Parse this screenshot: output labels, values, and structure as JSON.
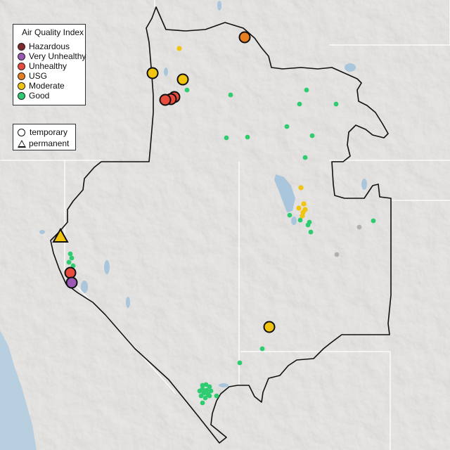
{
  "legend": {
    "title": "Air Quality Index",
    "categories": [
      {
        "label": "Hazardous",
        "color": "#7e2a2a"
      },
      {
        "label": "Very Unhealthy",
        "color": "#9b59b6"
      },
      {
        "label": "Unhealthy",
        "color": "#e74c3c"
      },
      {
        "label": "USG",
        "color": "#e67e22"
      },
      {
        "label": "Moderate",
        "color": "#f1c40f"
      },
      {
        "label": "Good",
        "color": "#2ecc71"
      }
    ]
  },
  "monitor_legend": {
    "items": [
      {
        "label": "temporary",
        "shape": "circle"
      },
      {
        "label": "permanent",
        "shape": "triangle"
      }
    ]
  },
  "colors": {
    "land": "#e4e2df",
    "ocean": "#b8cfe0",
    "water": "#a9c6dc",
    "boundary": "#111111",
    "state_lines": "#ffffff",
    "no_data": "#b0b0b0"
  }
}
